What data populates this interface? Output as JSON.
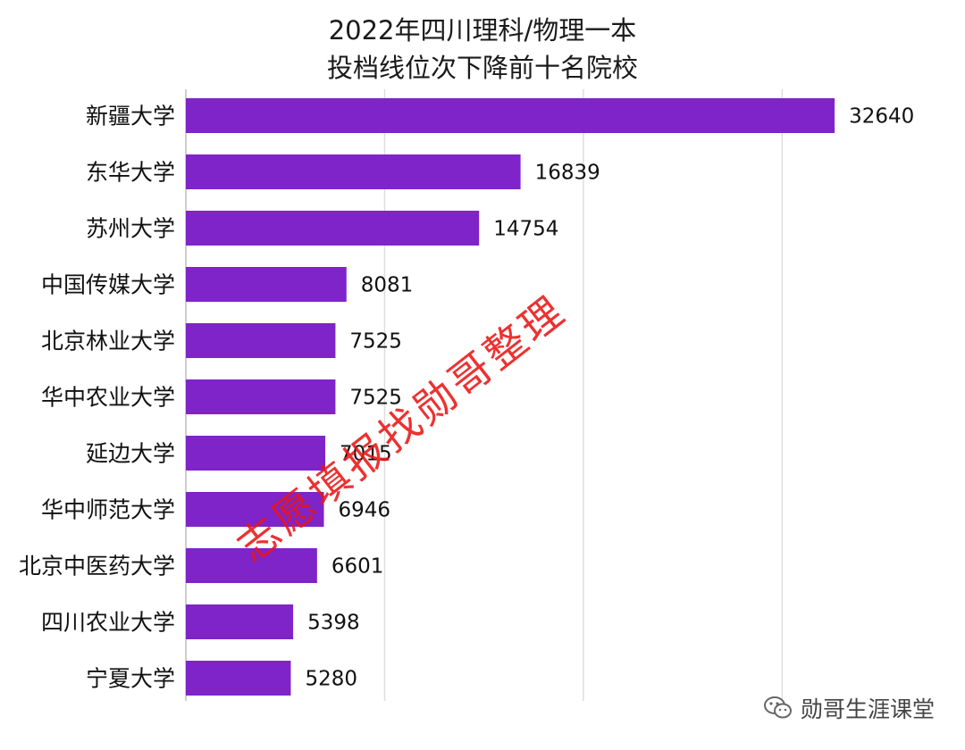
{
  "chart_data": {
    "type": "bar",
    "orientation": "horizontal",
    "title_lines": [
      "2022年四川理科/物理一本",
      "投档线位次下降前十名院校"
    ],
    "categories": [
      "新疆大学",
      "东华大学",
      "苏州大学",
      "中国传媒大学",
      "北京林业大学",
      "华中农业大学",
      "延边大学",
      "华中师范大学",
      "北京中医药大学",
      "四川农业大学",
      "宁夏大学"
    ],
    "values": [
      32640,
      16839,
      14754,
      8081,
      7525,
      7525,
      7015,
      6946,
      6601,
      5398,
      5280
    ],
    "xlim": [
      0,
      34000
    ],
    "grid": true,
    "bar_color": "#7e24c8"
  },
  "watermark": "志愿填报找勋哥整理",
  "brand": {
    "icon": "wechat-icon",
    "label": "勋哥生涯课堂"
  }
}
